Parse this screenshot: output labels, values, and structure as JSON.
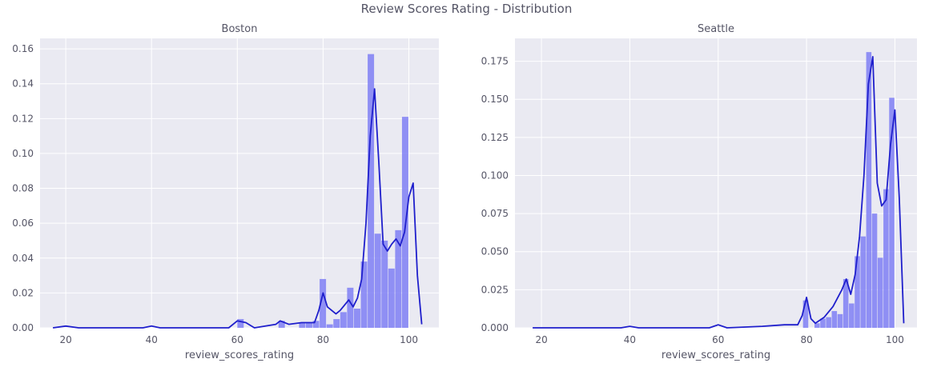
{
  "figure": {
    "suptitle": "Review Scores Rating - Distribution"
  },
  "colors": {
    "plot_bg": "#eaeaf2",
    "grid": "#ffffff",
    "bar": "#7f7ff5",
    "kde": "#1f1fcc",
    "text": "#555566"
  },
  "chart_data": [
    {
      "type": "bar",
      "title": "Boston",
      "xlabel": "review_scores_rating",
      "ylabel": "",
      "xlim": [
        14,
        107
      ],
      "ylim": [
        0,
        0.166
      ],
      "xticks": [
        20,
        40,
        60,
        80,
        100
      ],
      "yticks": [
        0.0,
        0.02,
        0.04,
        0.06,
        0.08,
        0.1,
        0.12,
        0.14,
        0.16
      ],
      "ytick_labels": [
        "0.00",
        "0.02",
        "0.04",
        "0.06",
        "0.08",
        "0.10",
        "0.12",
        "0.14",
        "0.16"
      ],
      "grid": true,
      "bins": [
        {
          "x0": 60.0,
          "x1": 61.6,
          "y": 0.005
        },
        {
          "x0": 69.6,
          "x1": 71.2,
          "y": 0.004
        },
        {
          "x0": 74.4,
          "x1": 76.0,
          "y": 0.003
        },
        {
          "x0": 76.0,
          "x1": 77.6,
          "y": 0.003
        },
        {
          "x0": 77.6,
          "x1": 79.2,
          "y": 0.004
        },
        {
          "x0": 79.2,
          "x1": 80.8,
          "y": 0.028
        },
        {
          "x0": 80.8,
          "x1": 82.4,
          "y": 0.002
        },
        {
          "x0": 82.4,
          "x1": 84.0,
          "y": 0.005
        },
        {
          "x0": 84.0,
          "x1": 85.6,
          "y": 0.009
        },
        {
          "x0": 85.6,
          "x1": 87.2,
          "y": 0.023
        },
        {
          "x0": 87.2,
          "x1": 88.8,
          "y": 0.011
        },
        {
          "x0": 88.8,
          "x1": 90.4,
          "y": 0.038
        },
        {
          "x0": 90.4,
          "x1": 92.0,
          "y": 0.157
        },
        {
          "x0": 92.0,
          "x1": 93.6,
          "y": 0.054
        },
        {
          "x0": 93.6,
          "x1": 95.2,
          "y": 0.05
        },
        {
          "x0": 95.2,
          "x1": 96.8,
          "y": 0.034
        },
        {
          "x0": 96.8,
          "x1": 98.4,
          "y": 0.056
        },
        {
          "x0": 98.4,
          "x1": 100.0,
          "y": 0.121
        }
      ],
      "kde": {
        "x": [
          17,
          20,
          23,
          38,
          40,
          42,
          58,
          60,
          62,
          64,
          69,
          70,
          72,
          75,
          78,
          79,
          80,
          81,
          83,
          84,
          86,
          87,
          88,
          89,
          90,
          91,
          92,
          93,
          94,
          95,
          96,
          97,
          98,
          99,
          100,
          101,
          102,
          103
        ],
        "y": [
          0,
          0.001,
          0,
          0,
          0.001,
          0,
          0,
          0.004,
          0.003,
          0,
          0.002,
          0.004,
          0.002,
          0.003,
          0.003,
          0.01,
          0.02,
          0.012,
          0.008,
          0.01,
          0.016,
          0.012,
          0.017,
          0.028,
          0.06,
          0.11,
          0.137,
          0.095,
          0.048,
          0.044,
          0.048,
          0.051,
          0.047,
          0.055,
          0.075,
          0.083,
          0.03,
          0.002
        ]
      }
    },
    {
      "type": "bar",
      "title": "Seattle",
      "xlabel": "review_scores_rating",
      "ylabel": "",
      "xlim": [
        14,
        105
      ],
      "ylim": [
        0,
        0.19
      ],
      "xticks": [
        20,
        40,
        60,
        80,
        100
      ],
      "yticks": [
        0.0,
        0.025,
        0.05,
        0.075,
        0.1,
        0.125,
        0.15,
        0.175
      ],
      "ytick_labels": [
        "0.000",
        "0.025",
        "0.050",
        "0.075",
        "0.100",
        "0.125",
        "0.150",
        "0.175"
      ],
      "grid": true,
      "bins": [
        {
          "x0": 79.2,
          "x1": 80.5,
          "y": 0.018
        },
        {
          "x0": 81.8,
          "x1": 83.1,
          "y": 0.003
        },
        {
          "x0": 83.1,
          "x1": 84.4,
          "y": 0.006
        },
        {
          "x0": 84.4,
          "x1": 85.7,
          "y": 0.007
        },
        {
          "x0": 85.7,
          "x1": 87.0,
          "y": 0.011
        },
        {
          "x0": 87.0,
          "x1": 88.3,
          "y": 0.009
        },
        {
          "x0": 88.3,
          "x1": 89.6,
          "y": 0.032
        },
        {
          "x0": 89.6,
          "x1": 90.9,
          "y": 0.016
        },
        {
          "x0": 90.9,
          "x1": 92.2,
          "y": 0.047
        },
        {
          "x0": 92.2,
          "x1": 93.5,
          "y": 0.06
        },
        {
          "x0": 93.5,
          "x1": 94.8,
          "y": 0.181
        },
        {
          "x0": 94.8,
          "x1": 96.1,
          "y": 0.075
        },
        {
          "x0": 96.1,
          "x1": 97.4,
          "y": 0.046
        },
        {
          "x0": 97.4,
          "x1": 98.7,
          "y": 0.091
        },
        {
          "x0": 98.7,
          "x1": 100.0,
          "y": 0.151
        }
      ],
      "kde": {
        "x": [
          18,
          25,
          38,
          40,
          42,
          58,
          60,
          62,
          70,
          75,
          78,
          79,
          80,
          81,
          82,
          84,
          86,
          88,
          89,
          90,
          91,
          92,
          93,
          94,
          95,
          96,
          97,
          98,
          99,
          100,
          101,
          102
        ],
        "y": [
          0,
          0,
          0,
          0.001,
          0,
          0,
          0.002,
          0,
          0.001,
          0.002,
          0.002,
          0.008,
          0.02,
          0.006,
          0.003,
          0.007,
          0.014,
          0.025,
          0.032,
          0.022,
          0.035,
          0.06,
          0.1,
          0.16,
          0.178,
          0.095,
          0.08,
          0.084,
          0.12,
          0.143,
          0.085,
          0.003
        ]
      }
    }
  ]
}
